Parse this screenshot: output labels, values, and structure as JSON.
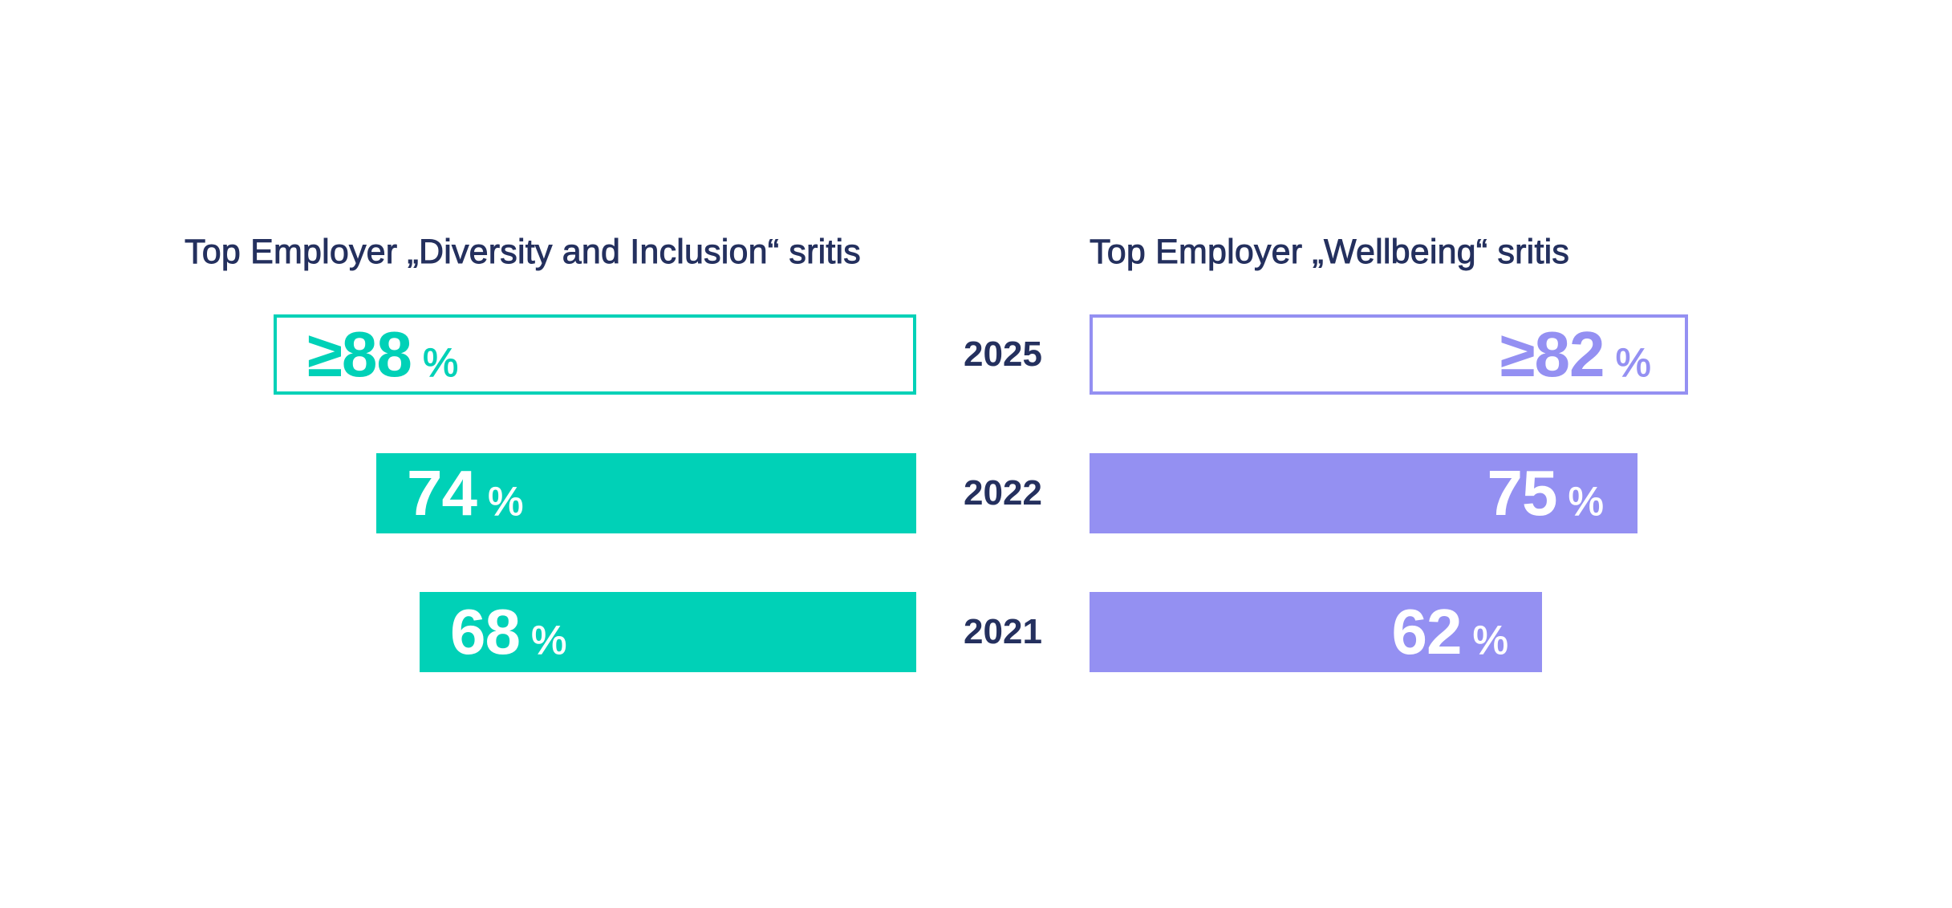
{
  "chart_data": [
    {
      "type": "bar",
      "orientation": "horizontal",
      "direction": "right-to-left",
      "title": "Top Employer „Diversity and Inclusion“ sritis",
      "categories": [
        "2025",
        "2022",
        "2021"
      ],
      "values": [
        88,
        74,
        68
      ],
      "labels": [
        "≥88",
        "74",
        "68"
      ],
      "unit": "%",
      "target_flags": [
        true,
        false,
        false
      ],
      "color": "#00d1b7"
    },
    {
      "type": "bar",
      "orientation": "horizontal",
      "direction": "left-to-right",
      "title": "Top Employer „Wellbeing“ sritis",
      "categories": [
        "2025",
        "2022",
        "2021"
      ],
      "values": [
        82,
        75,
        62
      ],
      "labels": [
        "≥82",
        "75",
        "62"
      ],
      "unit": "%",
      "target_flags": [
        true,
        false,
        false
      ],
      "color": "#9490f2"
    }
  ],
  "text_color": "#24305e",
  "background": "#ffffff"
}
